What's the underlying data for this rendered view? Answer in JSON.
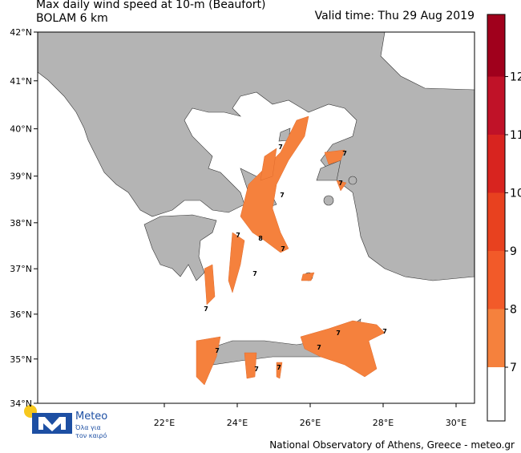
{
  "title": "Max daily wind speed at 10-m (Beaufort)",
  "subtitle": "BOLAM 6 km",
  "valid_time": "Valid time: Thu 29 Aug 2019",
  "map": {
    "latticks": [
      {
        "value": 42,
        "label": "42°N"
      },
      {
        "value": 41,
        "label": "41°N"
      },
      {
        "value": 40,
        "label": "40°N"
      },
      {
        "value": 39,
        "label": "39°N"
      },
      {
        "value": 38,
        "label": "38°N"
      },
      {
        "value": 37,
        "label": "37°N"
      },
      {
        "value": 36,
        "label": "36°N"
      },
      {
        "value": 35,
        "label": "35°N"
      },
      {
        "value": 34,
        "label": "34°N"
      }
    ],
    "lonticks": [
      {
        "value": 22,
        "label": "22°E"
      },
      {
        "value": 24,
        "label": "24°E"
      },
      {
        "value": 26,
        "label": "26°E"
      },
      {
        "value": 28,
        "label": "28°E"
      },
      {
        "value": 30,
        "label": "30°E"
      }
    ],
    "contour_labels": [
      "7",
      "7",
      "7",
      "8",
      "7",
      "7",
      "7",
      "7",
      "7",
      "7",
      "7",
      "7",
      "7",
      "7",
      "7"
    ]
  },
  "colorbar": {
    "levels": [
      7,
      8,
      9,
      10,
      11,
      12
    ],
    "colors": [
      "#ffffff",
      "#f5813d",
      "#f25a29",
      "#e8411f",
      "#d8241f",
      "#c01228",
      "#a0001c"
    ]
  },
  "logo": {
    "name": "Meteo",
    "tagline_1": "Όλα για",
    "tagline_2": "τον καιρό"
  },
  "footer": "National Observatory of Athens, Greece - meteo.gr"
}
